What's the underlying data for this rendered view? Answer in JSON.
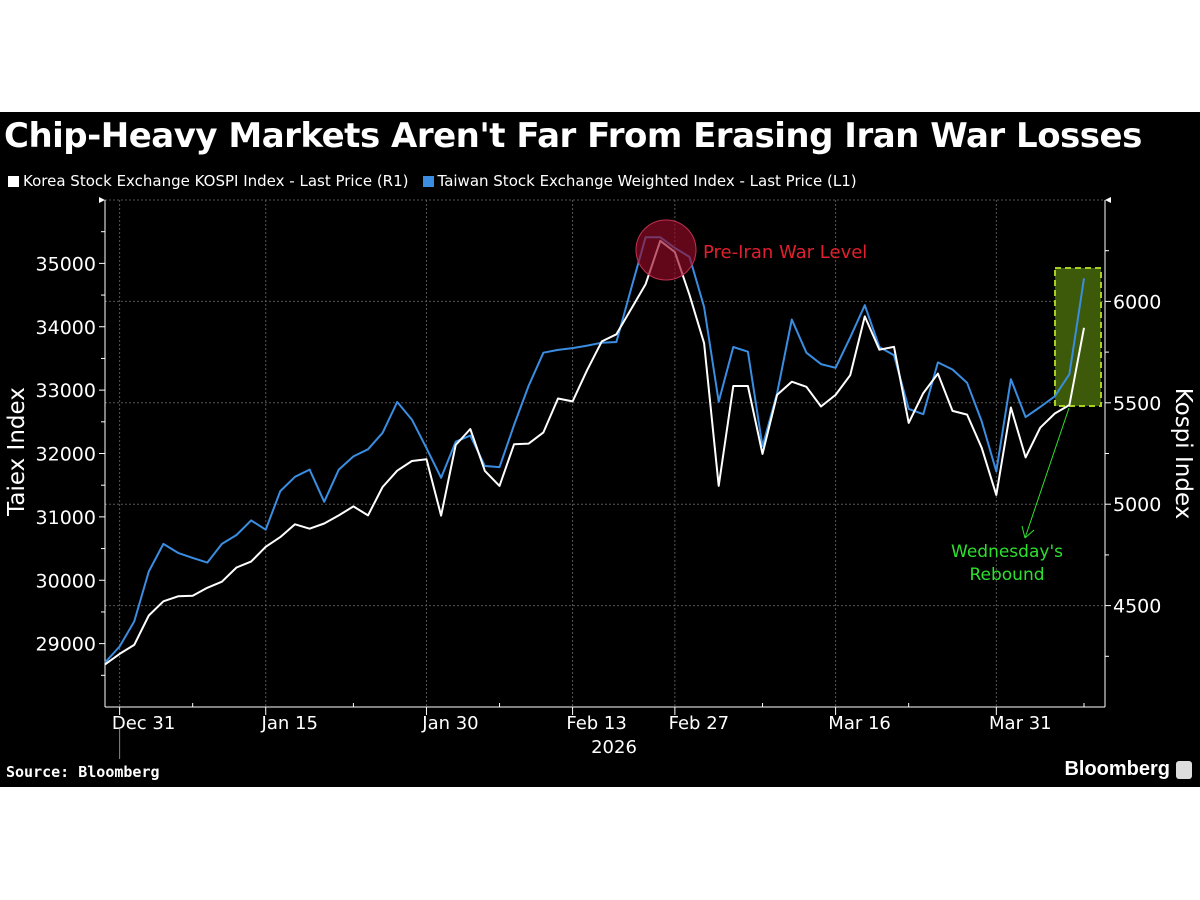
{
  "chart_data": {
    "type": "line",
    "title": "Chip-Heavy Markets Aren't Far From Erasing Iran War Losses",
    "x_year_label": "2026",
    "x_tick_labels": [
      "Dec 31",
      "Jan 15",
      "Jan 30",
      "Feb 13",
      "Feb 27",
      "Mar 16",
      "Mar 31"
    ],
    "x": [
      "Dec 30",
      "Dec 31",
      "Jan 2",
      "Jan 5",
      "Jan 6",
      "Jan 7",
      "Jan 8",
      "Jan 9",
      "Jan 12",
      "Jan 13",
      "Jan 14",
      "Jan 15",
      "Jan 16",
      "Jan 19",
      "Jan 20",
      "Jan 21",
      "Jan 22",
      "Jan 23",
      "Jan 26",
      "Jan 27",
      "Jan 28",
      "Jan 29",
      "Jan 30",
      "Feb 2",
      "Feb 3",
      "Feb 4",
      "Feb 5",
      "Feb 6",
      "Feb 9",
      "Feb 10",
      "Feb 11",
      "Feb 12",
      "Feb 13",
      "Feb 19",
      "Feb 20",
      "Feb 23",
      "Feb 24",
      "Feb 25",
      "Feb 26",
      "Feb 27",
      "Mar 2",
      "Mar 3",
      "Mar 4",
      "Mar 5",
      "Mar 6",
      "Mar 9",
      "Mar 10",
      "Mar 11",
      "Mar 12",
      "Mar 13",
      "Mar 16",
      "Mar 17",
      "Mar 18",
      "Mar 19",
      "Mar 20",
      "Mar 23",
      "Mar 24",
      "Mar 25",
      "Mar 26",
      "Mar 27",
      "Mar 30",
      "Mar 31",
      "Apr 1",
      "Apr 2",
      "Apr 3",
      "Apr 6",
      "Apr 7",
      "Apr 8"
    ],
    "left_axis": {
      "label": "Taiex Index",
      "ylim": [
        28000,
        36000
      ],
      "ticks": [
        29000,
        30000,
        31000,
        32000,
        33000,
        34000,
        35000
      ]
    },
    "right_axis": {
      "label": "Kospi Index",
      "ylim": [
        4000,
        6500
      ],
      "ticks": [
        4500,
        5000,
        5500,
        6000
      ]
    },
    "grid": true,
    "legend_position": "top-left",
    "series": [
      {
        "name": "Korea Stock Exchange KOSPI Index - Last Price (R1)",
        "axis": "right",
        "color": "#ffffff",
        "values": [
          4210,
          4262,
          4306,
          4451,
          4521,
          4546,
          4549,
          4588,
          4618,
          4688,
          4717,
          4790,
          4838,
          4901,
          4879,
          4905,
          4945,
          4989,
          4945,
          5085,
          5165,
          5213,
          5222,
          4944,
          5292,
          5371,
          5164,
          5090,
          5296,
          5299,
          5354,
          5521,
          5507,
          5662,
          5803,
          5838,
          5961,
          6085,
          6299,
          6243,
          6032,
          5794,
          5090,
          5583,
          5583,
          5248,
          5539,
          5604,
          5579,
          5482,
          5539,
          5636,
          5926,
          5762,
          5776,
          5401,
          5548,
          5644,
          5460,
          5442,
          5278,
          5046,
          5477,
          5231,
          5377,
          5447,
          5489,
          5870
        ]
      },
      {
        "name": "Taiwan Stock Exchange Weighted Index - Last Price (L1)",
        "axis": "left",
        "color": "#3a8de0",
        "values": [
          28700,
          28954,
          29349,
          30138,
          30573,
          30431,
          30352,
          30279,
          30573,
          30714,
          30945,
          30798,
          31407,
          31633,
          31746,
          31238,
          31746,
          31954,
          32067,
          32327,
          32812,
          32535,
          32084,
          31616,
          32186,
          32282,
          31802,
          31785,
          32451,
          33071,
          33590,
          33635,
          33663,
          33703,
          33748,
          33759,
          34594,
          35412,
          35412,
          35243,
          35102,
          34312,
          32817,
          33680,
          33607,
          32112,
          32950,
          34115,
          33590,
          33410,
          33353,
          33832,
          34340,
          33680,
          33550,
          32704,
          32620,
          33438,
          33325,
          33116,
          32507,
          31717,
          33173,
          32575,
          32733,
          32902,
          33252,
          34763
        ]
      }
    ],
    "annotations": [
      {
        "text": "Pre-Iran War Level",
        "color": "#e0202e"
      },
      {
        "text_lines": [
          "Wednesday's",
          "Rebound"
        ],
        "color": "#2ee02e"
      }
    ]
  },
  "footer": {
    "source": "Source: Bloomberg",
    "brand": "Bloomberg"
  }
}
